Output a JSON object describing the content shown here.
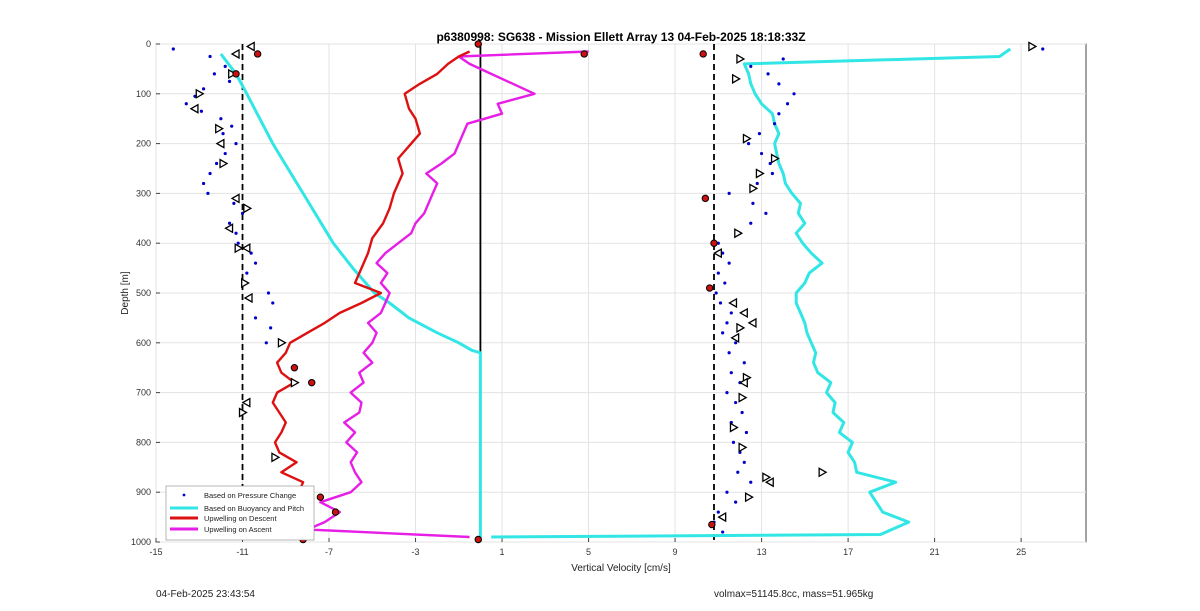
{
  "chart_data": {
    "type": "scatter",
    "title": "p6380998: SG638 - Mission Ellett Array 13 04-Feb-2025 18:18:33Z",
    "xlabel": "Vertical Velocity [cm/s]",
    "ylabel": "Depth [m]",
    "xlim": [
      -15,
      28
    ],
    "ylim": [
      0,
      1000
    ],
    "y_reversed": true,
    "x_ticks": [
      -15,
      -11,
      -7,
      -3,
      1,
      5,
      9,
      13,
      17,
      21,
      25
    ],
    "y_ticks": [
      0,
      100,
      200,
      300,
      400,
      500,
      600,
      700,
      800,
      900,
      1000
    ],
    "grid": true,
    "legend_position": "bottom-left",
    "reference_lines": {
      "dashed_x": [
        -11,
        10.8
      ],
      "solid_x": 0
    },
    "series": [
      {
        "name": "Based on Pressure Change",
        "style": "dots",
        "color": "#0000cc",
        "descent_points": [
          [
            -14.2,
            10
          ],
          [
            -12.5,
            25
          ],
          [
            -11.8,
            45
          ],
          [
            -12.3,
            60
          ],
          [
            -11.6,
            75
          ],
          [
            -12.8,
            90
          ],
          [
            -13.2,
            105
          ],
          [
            -13.6,
            120
          ],
          [
            -12.9,
            135
          ],
          [
            -12.0,
            150
          ],
          [
            -11.5,
            165
          ],
          [
            -11.9,
            180
          ],
          [
            -11.3,
            200
          ],
          [
            -11.8,
            220
          ],
          [
            -12.2,
            240
          ],
          [
            -12.5,
            260
          ],
          [
            -12.8,
            280
          ],
          [
            -12.6,
            300
          ],
          [
            -11.4,
            320
          ],
          [
            -11.0,
            340
          ],
          [
            -11.6,
            360
          ],
          [
            -11.3,
            380
          ],
          [
            -11.2,
            400
          ],
          [
            -10.6,
            420
          ],
          [
            -10.4,
            440
          ],
          [
            -10.8,
            460
          ],
          [
            -10.9,
            480
          ],
          [
            -9.8,
            500
          ],
          [
            -9.6,
            520
          ],
          [
            -10.4,
            550
          ],
          [
            -9.7,
            570
          ],
          [
            -9.9,
            600
          ]
        ],
        "ascent_points": [
          [
            11.2,
            980
          ],
          [
            10.8,
            960
          ],
          [
            11.0,
            940
          ],
          [
            11.8,
            920
          ],
          [
            11.4,
            900
          ],
          [
            12.5,
            880
          ],
          [
            11.9,
            860
          ],
          [
            12.2,
            840
          ],
          [
            12.0,
            820
          ],
          [
            11.7,
            800
          ],
          [
            12.3,
            780
          ],
          [
            11.6,
            760
          ],
          [
            12.1,
            740
          ],
          [
            11.8,
            720
          ],
          [
            11.4,
            700
          ],
          [
            12.0,
            680
          ],
          [
            11.6,
            660
          ],
          [
            12.2,
            640
          ],
          [
            11.5,
            620
          ],
          [
            11.8,
            600
          ],
          [
            11.2,
            580
          ],
          [
            11.4,
            560
          ],
          [
            11.6,
            540
          ],
          [
            11.1,
            520
          ],
          [
            10.9,
            500
          ],
          [
            11.3,
            480
          ],
          [
            11.0,
            460
          ],
          [
            11.5,
            440
          ],
          [
            11.2,
            420
          ],
          [
            11.0,
            400
          ],
          [
            12.0,
            380
          ],
          [
            12.5,
            360
          ],
          [
            13.2,
            340
          ],
          [
            12.6,
            320
          ],
          [
            11.5,
            300
          ],
          [
            12.8,
            280
          ],
          [
            13.5,
            260
          ],
          [
            13.4,
            240
          ],
          [
            13.0,
            220
          ],
          [
            12.4,
            200
          ],
          [
            12.9,
            180
          ],
          [
            13.6,
            160
          ],
          [
            13.8,
            140
          ],
          [
            14.2,
            120
          ],
          [
            14.5,
            100
          ],
          [
            13.8,
            80
          ],
          [
            13.3,
            60
          ],
          [
            12.5,
            45
          ],
          [
            14.0,
            30
          ],
          [
            26.0,
            10
          ]
        ]
      },
      {
        "name": "Based on Buoyancy and Pitch",
        "style": "line",
        "color": "#33e6e6",
        "descent": {
          "depth": [
            20,
            60,
            100,
            150,
            200,
            250,
            300,
            350,
            400,
            450,
            480,
            500,
            520,
            550,
            580,
            600,
            615,
            620,
            990
          ],
          "velocity": [
            -12.0,
            -11.3,
            -10.8,
            -10.2,
            -9.6,
            -8.9,
            -8.2,
            -7.5,
            -6.8,
            -5.9,
            -5.3,
            -4.9,
            -4.2,
            -3.3,
            -2.0,
            -1.0,
            -0.4,
            0.0,
            0.0
          ]
        },
        "ascent": {
          "depth": [
            990,
            985,
            960,
            940,
            920,
            900,
            880,
            860,
            840,
            820,
            800,
            780,
            760,
            740,
            720,
            700,
            680,
            660,
            640,
            620,
            600,
            580,
            560,
            540,
            520,
            500,
            480,
            460,
            440,
            420,
            400,
            380,
            360,
            340,
            320,
            300,
            280,
            260,
            240,
            220,
            200,
            180,
            160,
            140,
            120,
            100,
            80,
            60,
            40,
            25,
            10
          ],
          "velocity": [
            0.5,
            18.5,
            19.8,
            18.6,
            18.3,
            18.0,
            19.2,
            17.4,
            17.3,
            17.0,
            17.2,
            16.6,
            16.8,
            16.3,
            16.4,
            16.0,
            16.2,
            15.6,
            15.4,
            15.5,
            15.3,
            15.1,
            15.0,
            14.8,
            14.6,
            14.6,
            15.0,
            15.2,
            15.8,
            15.3,
            14.9,
            14.6,
            15.0,
            14.7,
            14.8,
            14.4,
            14.1,
            14.0,
            13.8,
            13.7,
            13.6,
            13.8,
            13.6,
            13.5,
            13.0,
            12.7,
            12.5,
            12.4,
            12.2,
            24.0,
            24.5
          ]
        }
      },
      {
        "name": "Upwelling on Descent",
        "style": "line",
        "color": "#dd1111",
        "depth": [
          15,
          25,
          40,
          60,
          80,
          100,
          130,
          150,
          180,
          200,
          230,
          260,
          300,
          330,
          360,
          390,
          420,
          450,
          480,
          500,
          520,
          540,
          560,
          580,
          600,
          620,
          640,
          660,
          680,
          700,
          720,
          740,
          760,
          780,
          800,
          820,
          840,
          860,
          880,
          900,
          920,
          940,
          960,
          975,
          990
        ],
        "velocity": [
          -0.5,
          -1.0,
          -1.5,
          -2.0,
          -2.8,
          -3.5,
          -3.3,
          -3.0,
          -2.8,
          -3.2,
          -3.8,
          -3.6,
          -4.0,
          -4.2,
          -4.5,
          -5.0,
          -5.2,
          -5.5,
          -5.8,
          -4.6,
          -5.5,
          -6.5,
          -7.2,
          -8.0,
          -8.8,
          -9.0,
          -9.4,
          -9.2,
          -8.6,
          -9.4,
          -9.6,
          -9.3,
          -9.0,
          -9.2,
          -9.5,
          -9.3,
          -8.5,
          -9.2,
          -8.2,
          -8.4,
          -7.8,
          -8.5,
          -9.6,
          -10.2,
          -9.0
        ]
      },
      {
        "name": "Upwelling on Ascent",
        "style": "line",
        "color": "#e61ee6",
        "depth": [
          990,
          975,
          960,
          940,
          920,
          900,
          880,
          860,
          840,
          820,
          800,
          780,
          760,
          740,
          720,
          700,
          680,
          660,
          640,
          620,
          600,
          580,
          560,
          540,
          520,
          500,
          480,
          460,
          440,
          420,
          400,
          380,
          360,
          340,
          320,
          300,
          280,
          260,
          240,
          220,
          200,
          180,
          160,
          140,
          120,
          100,
          80,
          60,
          40,
          25,
          15
        ],
        "velocity": [
          -0.5,
          -8.0,
          -7.2,
          -6.5,
          -7.4,
          -6.0,
          -5.5,
          -5.8,
          -6.0,
          -5.7,
          -6.2,
          -5.8,
          -6.3,
          -5.6,
          -5.5,
          -6.0,
          -5.4,
          -5.6,
          -5.0,
          -5.4,
          -5.0,
          -4.8,
          -5.2,
          -4.6,
          -4.4,
          -4.2,
          -4.6,
          -4.3,
          -4.8,
          -4.4,
          -3.8,
          -3.2,
          -3.0,
          -2.6,
          -2.4,
          -2.2,
          -2.0,
          -2.5,
          -1.8,
          -1.2,
          -1.0,
          -0.8,
          -0.6,
          1.0,
          0.8,
          2.5,
          1.5,
          0.5,
          -0.5,
          -1.0,
          5.0
        ]
      }
    ],
    "markers": {
      "triangles_right": [
        [
          -11.5,
          60
        ],
        [
          -13.0,
          100
        ],
        [
          -12.1,
          170
        ],
        [
          -11.9,
          240
        ],
        [
          -10.8,
          330
        ],
        [
          -11.2,
          410
        ],
        [
          -10.9,
          480
        ],
        [
          -9.2,
          600
        ],
        [
          -8.6,
          680
        ],
        [
          -11.0,
          740
        ],
        [
          -9.5,
          830
        ],
        [
          12.0,
          30
        ],
        [
          11.8,
          70
        ],
        [
          12.3,
          190
        ],
        [
          13.6,
          230
        ],
        [
          12.9,
          260
        ],
        [
          12.6,
          290
        ],
        [
          11.9,
          380
        ],
        [
          12.0,
          570
        ],
        [
          12.3,
          670
        ],
        [
          12.1,
          710
        ],
        [
          11.7,
          770
        ],
        [
          12.1,
          810
        ],
        [
          15.8,
          860
        ],
        [
          13.2,
          870
        ],
        [
          12.4,
          910
        ],
        [
          25.5,
          5
        ]
      ],
      "triangles_left": [
        [
          -10.6,
          5
        ],
        [
          -11.3,
          20
        ],
        [
          -13.2,
          130
        ],
        [
          -12.0,
          200
        ],
        [
          -11.3,
          310
        ],
        [
          -11.6,
          370
        ],
        [
          -10.8,
          410
        ],
        [
          -10.7,
          510
        ],
        [
          -10.8,
          720
        ],
        [
          -9.4,
          960
        ],
        [
          11.0,
          420
        ],
        [
          11.7,
          520
        ],
        [
          12.2,
          540
        ],
        [
          12.6,
          560
        ],
        [
          11.8,
          590
        ],
        [
          12.2,
          680
        ],
        [
          13.4,
          880
        ],
        [
          11.2,
          950
        ]
      ],
      "filled_red": [
        [
          4.8,
          20
        ],
        [
          10.3,
          20
        ],
        [
          -10.3,
          20
        ],
        [
          -11.3,
          60
        ],
        [
          10.4,
          310
        ],
        [
          10.8,
          400
        ],
        [
          10.6,
          490
        ],
        [
          -8.6,
          650
        ],
        [
          -7.8,
          680
        ],
        [
          -7.4,
          910
        ],
        [
          -6.7,
          940
        ],
        [
          -8.2,
          995
        ],
        [
          10.7,
          965
        ],
        [
          -9.1,
          960
        ],
        [
          -0.1,
          995
        ],
        [
          -0.1,
          0
        ]
      ]
    }
  },
  "footer": {
    "left": "04-Feb-2025 23:43:54",
    "right": "volmax=51145.8cc, mass=51.965kg"
  }
}
